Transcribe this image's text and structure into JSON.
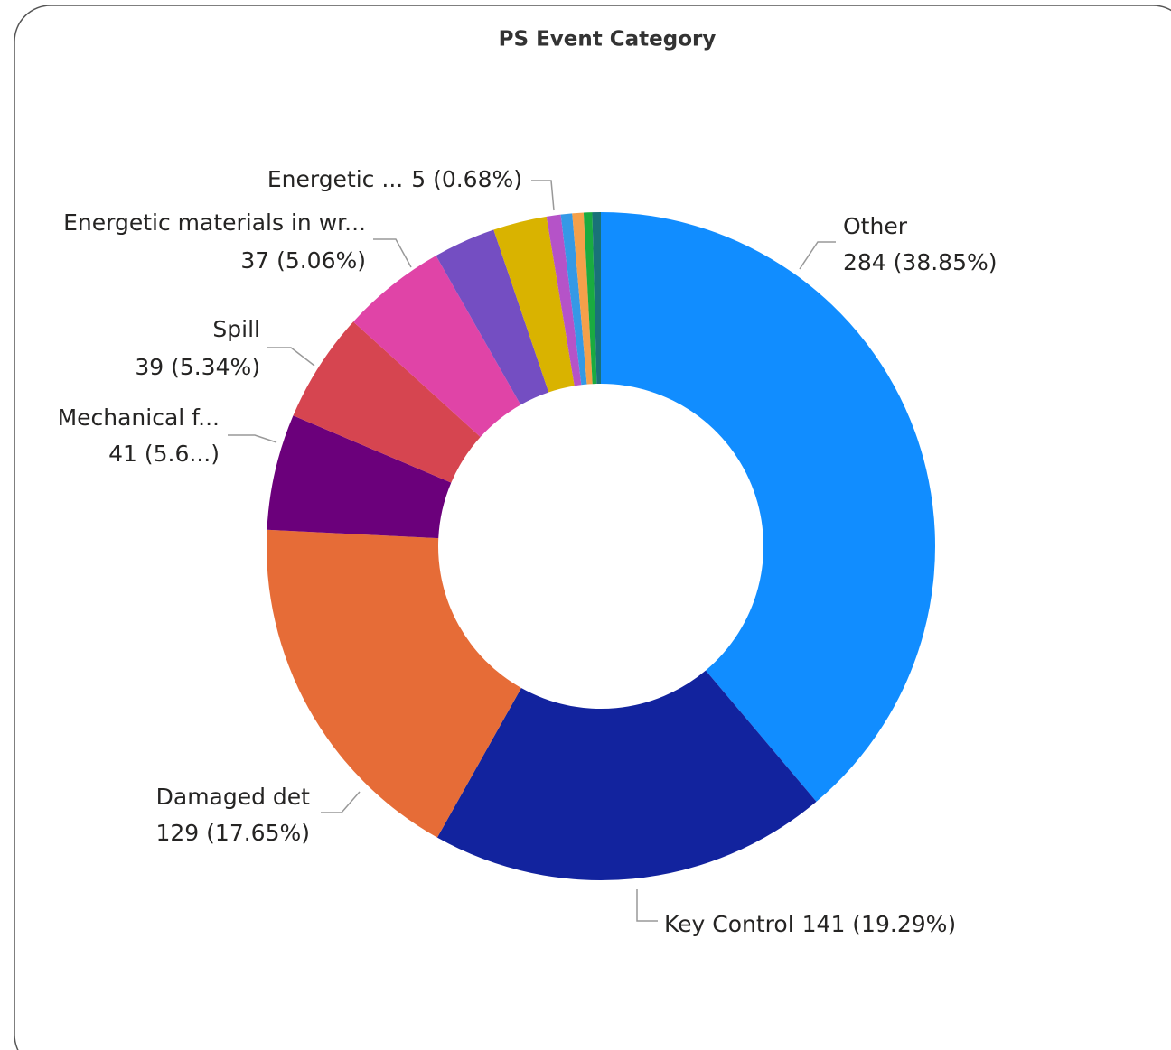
{
  "chart_data": {
    "type": "donut",
    "title": "PS Event Category",
    "categories": [
      "Other",
      "Key Control",
      "Damaged det",
      "Mechanical f...",
      "Spill",
      "Energetic materials in wr...",
      null,
      null,
      "Energetic ...",
      null,
      null,
      null,
      null
    ],
    "values": [
      284,
      141,
      129,
      41,
      39,
      37,
      22,
      19,
      5,
      4,
      4,
      3,
      3
    ],
    "value_labels": [
      "284 (38.85%)",
      "141 (19.29%)",
      "129 (17.65%)",
      "41 (5.6...)",
      "39 (5.34%)",
      "37 (5.06%)",
      null,
      null,
      "5 (0.68%)",
      null,
      null,
      null,
      null
    ],
    "colors": [
      "#118dff",
      "#12239e",
      "#e66c37",
      "#6b007b",
      "#d64550",
      "#e044a7",
      "#744ec2",
      "#d9b300",
      "#b553c8",
      "#3599e6",
      "#f5a04a",
      "#1aab40",
      "#197278"
    ]
  }
}
